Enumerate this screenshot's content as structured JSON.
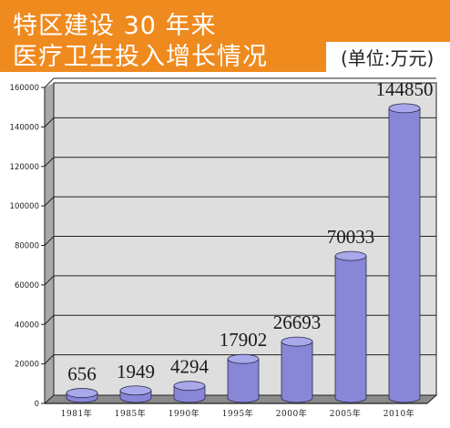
{
  "header": {
    "title_line1": "特区建设 30 年来",
    "title_line2": "医疗卫生投入增长情况",
    "unit": "(单位:万元)"
  },
  "colors": {
    "banner": "#ef8a1e",
    "plot_back": "#dedede",
    "plot_wall": "#a9a9a9",
    "bar": "#8886d6"
  },
  "chart_data": {
    "type": "bar",
    "style": "3d-cylinder",
    "categories": [
      "1981年",
      "1985年",
      "1990年",
      "1995年",
      "2000年",
      "2005年",
      "2010年"
    ],
    "values": [
      656,
      1949,
      4294,
      17902,
      26693,
      70033,
      144850
    ],
    "data_labels": [
      "656",
      "1949",
      "4294",
      "17902",
      "26693",
      "70033",
      "144850"
    ],
    "ylim": [
      0,
      160000
    ],
    "yticks": [
      0,
      20000,
      40000,
      60000,
      80000,
      100000,
      120000,
      140000,
      160000
    ],
    "ytick_labels": [
      "0",
      "20000",
      "40000",
      "60000",
      "80000",
      "100000",
      "120000",
      "140000",
      "160000"
    ],
    "grid": true,
    "legend": "none"
  }
}
